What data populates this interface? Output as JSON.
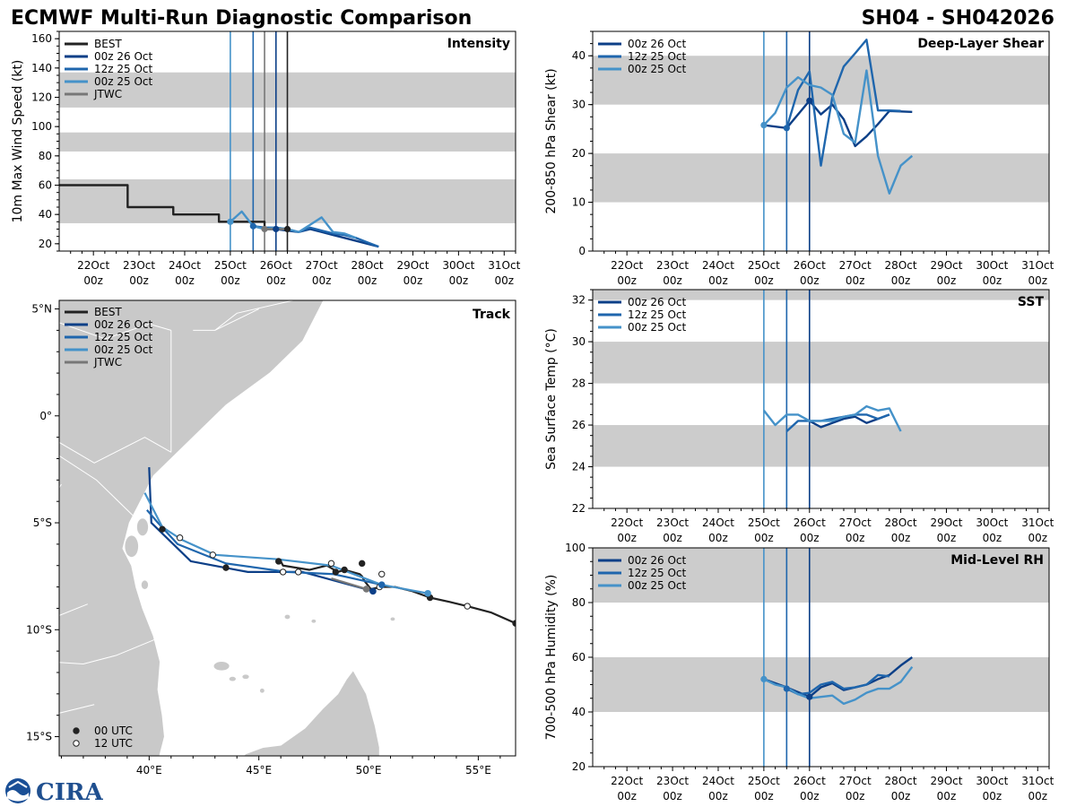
{
  "header": {
    "title": "ECMWF Multi-Run Diagnostic Comparison",
    "storm_id": "SH04 - SH042026"
  },
  "logo": {
    "text": "CIRA"
  },
  "colors": {
    "BEST": "#222222",
    "00z 26 Oct": "#0c3f87",
    "12z 25 Oct": "#1f66ad",
    "00z 25 Oct": "#4592c9",
    "JTWC": "#777777",
    "band": "#cccccc",
    "land": "#c9c9c9"
  },
  "time_axis": {
    "labels": [
      "22Oct\n00z",
      "23Oct\n00z",
      "24Oct\n00z",
      "25Oct\n00z",
      "26Oct\n00z",
      "27Oct\n00z",
      "28Oct\n00z",
      "29Oct\n00z",
      "30Oct\n00z",
      "31Oct\n00z"
    ],
    "range_days": [
      21.25,
      31.25
    ]
  },
  "chart_data": [
    {
      "id": "intensity",
      "type": "line",
      "title": "Intensity",
      "ylabel": "10m Max Wind Speed (kt)",
      "ylim": [
        15,
        165
      ],
      "yticks": [
        20,
        40,
        60,
        80,
        100,
        120,
        140,
        160
      ],
      "bands": [
        [
          34,
          64
        ],
        [
          83,
          96
        ],
        [
          113,
          137
        ]
      ],
      "init_lines": [
        {
          "x": 25.0,
          "series": "00z 25 Oct"
        },
        {
          "x": 25.5,
          "series": "12z 25 Oct"
        },
        {
          "x": 25.75,
          "series": "JTWC"
        },
        {
          "x": 26.0,
          "series": "00z 26 Oct"
        },
        {
          "x": 26.25,
          "series": "BEST"
        }
      ],
      "legend": [
        "BEST",
        "00z 26 Oct",
        "12z 25 Oct",
        "00z 25 Oct",
        "JTWC"
      ],
      "series": [
        {
          "name": "BEST",
          "x": [
            21.25,
            21.5,
            22.0,
            22.5,
            22.75,
            23.0,
            23.5,
            23.75,
            24.0,
            24.5,
            24.75,
            25.0,
            25.5,
            25.75,
            26.0,
            26.25
          ],
          "y": [
            60,
            60,
            60,
            60,
            45,
            45,
            45,
            40,
            40,
            40,
            35,
            35,
            35,
            30,
            30,
            30
          ],
          "step": true
        },
        {
          "name": "00z 26 Oct",
          "x": [
            26.0,
            26.25,
            26.5,
            26.75,
            27.0,
            27.25,
            27.5,
            27.75,
            28.0,
            28.25
          ],
          "y": [
            30,
            29,
            28,
            30,
            28,
            26,
            24,
            22,
            20,
            18
          ]
        },
        {
          "name": "12z 25 Oct",
          "x": [
            25.5,
            25.75,
            26.0,
            26.25,
            26.5,
            26.75,
            27.0,
            27.25,
            27.5,
            27.75,
            28.0,
            28.25
          ],
          "y": [
            32,
            31,
            31,
            30,
            28,
            31,
            29,
            27,
            26,
            24,
            21,
            18
          ]
        },
        {
          "name": "00z 25 Oct",
          "x": [
            25.0,
            25.25,
            25.5,
            25.75,
            26.0,
            26.25,
            26.5,
            26.75,
            27.0,
            27.25,
            27.5,
            27.75
          ],
          "y": [
            35,
            42,
            32,
            30,
            31,
            30,
            28,
            33,
            38,
            28,
            27,
            24
          ]
        },
        {
          "name": "JTWC",
          "x": [
            25.75,
            26.0,
            26.25
          ],
          "y": [
            30,
            30,
            30
          ]
        }
      ],
      "markers": [
        {
          "series": "00z 25 Oct",
          "x": 25.0,
          "y": 35
        },
        {
          "series": "12z 25 Oct",
          "x": 25.5,
          "y": 32
        },
        {
          "series": "JTWC",
          "x": 25.75,
          "y": 30
        },
        {
          "series": "00z 26 Oct",
          "x": 26.0,
          "y": 30
        },
        {
          "series": "BEST",
          "x": 26.25,
          "y": 30
        }
      ]
    },
    {
      "id": "shear",
      "type": "line",
      "title": "Deep-Layer Shear",
      "ylabel": "200-850 hPa Shear (kt)",
      "ylim": [
        0,
        45
      ],
      "yticks": [
        0,
        10,
        20,
        30,
        40
      ],
      "bands": [
        [
          10,
          20
        ],
        [
          30,
          40
        ]
      ],
      "init_lines": [
        {
          "x": 25.0,
          "series": "00z 25 Oct"
        },
        {
          "x": 25.5,
          "series": "12z 25 Oct"
        },
        {
          "x": 26.0,
          "series": "00z 26 Oct"
        }
      ],
      "legend": [
        "00z 26 Oct",
        "12z 25 Oct",
        "00z 25 Oct"
      ],
      "series": [
        {
          "name": "00z 26 Oct",
          "x": [
            25.0,
            25.5,
            26.0,
            26.25,
            26.5,
            26.75,
            27.0,
            27.25,
            27.5,
            27.75,
            28.0,
            28.25
          ],
          "y": [
            25.8,
            25.2,
            30.8,
            28.0,
            30.0,
            27.0,
            21.5,
            23.5,
            26.0,
            28.7,
            28.6,
            28.5
          ]
        },
        {
          "name": "12z 25 Oct",
          "x": [
            25.5,
            25.75,
            26.0,
            26.25,
            26.5,
            26.75,
            27.0,
            27.25,
            27.5,
            27.75,
            28.0
          ],
          "y": [
            25.2,
            33.0,
            36.8,
            17.5,
            31.5,
            37.8,
            40.5,
            43.3,
            28.8,
            28.8,
            28.7
          ]
        },
        {
          "name": "00z 25 Oct",
          "x": [
            25.0,
            25.25,
            25.5,
            25.75,
            26.0,
            26.25,
            26.5,
            26.75,
            27.0,
            27.25,
            27.5,
            27.75,
            28.0,
            28.25
          ],
          "y": [
            25.8,
            28.3,
            33.5,
            35.6,
            34.0,
            33.5,
            32.0,
            24.0,
            22.2,
            37.0,
            19.5,
            11.8,
            17.5,
            19.5
          ]
        }
      ],
      "markers": [
        {
          "series": "00z 25 Oct",
          "x": 25.0,
          "y": 25.8
        },
        {
          "series": "12z 25 Oct",
          "x": 25.5,
          "y": 25.2
        },
        {
          "series": "00z 26 Oct",
          "x": 26.0,
          "y": 30.8
        }
      ]
    },
    {
      "id": "sst",
      "type": "line",
      "title": "SST",
      "ylabel": "Sea Surface Temp (°C)",
      "ylim": [
        22,
        32.5
      ],
      "yticks": [
        22,
        24,
        26,
        28,
        30,
        32
      ],
      "bands": [
        [
          24,
          26
        ],
        [
          28,
          30
        ],
        [
          32,
          32.5
        ]
      ],
      "init_lines": [
        {
          "x": 25.0,
          "series": "00z 25 Oct"
        },
        {
          "x": 25.5,
          "series": "12z 25 Oct"
        },
        {
          "x": 26.0,
          "series": "00z 26 Oct"
        }
      ],
      "legend": [
        "00z 26 Oct",
        "12z 25 Oct",
        "00z 25 Oct"
      ],
      "series": [
        {
          "name": "00z 26 Oct",
          "x": [
            26.0,
            26.25,
            26.5,
            26.75,
            27.0,
            27.25,
            27.5,
            27.75
          ],
          "y": [
            26.2,
            25.9,
            26.1,
            26.3,
            26.4,
            26.1,
            26.3,
            26.5
          ]
        },
        {
          "name": "12z 25 Oct",
          "x": [
            25.5,
            25.75,
            26.0,
            26.25,
            26.5,
            26.75,
            27.0,
            27.25,
            27.5,
            27.75
          ],
          "y": [
            25.7,
            26.2,
            26.2,
            26.2,
            26.3,
            26.4,
            26.5,
            26.5,
            26.3,
            26.5
          ]
        },
        {
          "name": "00z 25 Oct",
          "x": [
            25.0,
            25.25,
            25.5,
            25.75,
            26.0,
            26.25,
            26.5,
            26.75,
            27.0,
            27.25,
            27.5,
            27.75,
            28.0
          ],
          "y": [
            26.7,
            26.0,
            26.5,
            26.5,
            26.2,
            26.2,
            26.2,
            26.4,
            26.5,
            26.9,
            26.7,
            26.8,
            25.7
          ]
        }
      ],
      "markers": []
    },
    {
      "id": "rh",
      "type": "line",
      "title": "Mid-Level RH",
      "ylabel": "700-500 hPa Humidity (%)",
      "ylim": [
        20,
        100
      ],
      "yticks": [
        20,
        40,
        60,
        80,
        100
      ],
      "bands": [
        [
          40,
          60
        ],
        [
          80,
          100
        ]
      ],
      "init_lines": [
        {
          "x": 25.0,
          "series": "00z 25 Oct"
        },
        {
          "x": 25.5,
          "series": "12z 25 Oct"
        },
        {
          "x": 26.0,
          "series": "00z 26 Oct"
        }
      ],
      "legend": [
        "00z 26 Oct",
        "12z 25 Oct",
        "00z 25 Oct"
      ],
      "series": [
        {
          "name": "00z 26 Oct",
          "x": [
            25.0,
            25.5,
            26.0,
            26.25,
            26.5,
            26.75,
            27.0,
            27.25,
            27.5,
            27.75,
            28.0,
            28.25
          ],
          "y": [
            52,
            49,
            45.5,
            49,
            50.5,
            48,
            49,
            50,
            52,
            53.5,
            57,
            60
          ]
        },
        {
          "name": "12z 25 Oct",
          "x": [
            25.5,
            25.75,
            26.0,
            26.25,
            26.5,
            26.75,
            27.0,
            27.25,
            27.5,
            27.75
          ],
          "y": [
            48.5,
            46.5,
            47,
            50,
            51,
            48.5,
            49,
            50,
            53.5,
            53
          ]
        },
        {
          "name": "00z 25 Oct",
          "x": [
            25.0,
            25.25,
            25.5,
            25.75,
            26.0,
            26.25,
            26.5,
            26.75,
            27.0,
            27.25,
            27.5,
            27.75,
            28.0,
            28.25
          ],
          "y": [
            52,
            50,
            49,
            46.5,
            45,
            45.5,
            46,
            43,
            44.5,
            47,
            48.5,
            48.5,
            51,
            56.5
          ]
        }
      ],
      "markers": [
        {
          "series": "00z 25 Oct",
          "x": 25.0,
          "y": 52
        },
        {
          "series": "12z 25 Oct",
          "x": 25.5,
          "y": 48.5
        },
        {
          "series": "00z 26 Oct",
          "x": 26.0,
          "y": 45.5
        }
      ]
    },
    {
      "id": "track",
      "type": "scatter",
      "title": "Track",
      "xlim": [
        35.9,
        56.7
      ],
      "ylim": [
        -15.9,
        5.4
      ],
      "xticks": [
        40,
        45,
        50,
        55
      ],
      "xtick_labels": [
        "40°E",
        "45°E",
        "50°E",
        "55°E"
      ],
      "yticks": [
        5,
        0,
        -5,
        -10,
        -15
      ],
      "ytick_labels": [
        "5°N",
        "0°",
        "5°S",
        "10°S",
        "15°S"
      ],
      "legend": [
        "BEST",
        "00z 26 Oct",
        "12z 25 Oct",
        "00z 25 Oct",
        "JTWC"
      ],
      "utc_legend": [
        "00 UTC",
        "12 UTC"
      ],
      "series": [
        {
          "name": "BEST",
          "lon": [
            56.7,
            55.6,
            54.5,
            53.7,
            52.8,
            52.0,
            51.2,
            50.6,
            50.1,
            49.8,
            49.7,
            49.6,
            48.9,
            48.6,
            48.1,
            47.3,
            46.1,
            46.0
          ],
          "lat": [
            -9.7,
            -9.2,
            -8.9,
            -8.7,
            -8.5,
            -8.2,
            -8.0,
            -8.0,
            -8.1,
            -7.7,
            -7.5,
            -7.4,
            -7.2,
            -7.3,
            -7.0,
            -7.2,
            -7.0,
            -6.8
          ]
        },
        {
          "name": "00z 26 Oct",
          "lon": [
            50.2,
            49.5,
            47.0,
            44.5,
            41.9,
            40.1,
            40.0
          ],
          "lat": [
            -8.2,
            -8.0,
            -7.3,
            -7.3,
            -6.8,
            -5.0,
            -2.4
          ]
        },
        {
          "name": "12z 25 Oct",
          "lon": [
            50.6,
            48.4,
            46.3,
            43.5,
            41.3,
            40.4,
            39.9
          ],
          "lat": [
            -7.9,
            -7.4,
            -7.3,
            -6.9,
            -6.0,
            -5.0,
            -4.4
          ]
        },
        {
          "name": "00z 25 Oct",
          "lon": [
            52.7,
            50.6,
            48.3,
            45.8,
            43.0,
            41.5,
            40.6,
            39.8
          ],
          "lat": [
            -8.3,
            -7.9,
            -7.0,
            -6.7,
            -6.5,
            -5.8,
            -5.2,
            -3.6
          ]
        },
        {
          "name": "JTWC",
          "lon": [
            49.9,
            48.3
          ],
          "lat": [
            -8.1,
            -7.6
          ]
        }
      ],
      "points": [
        {
          "lon": 56.7,
          "lat": -9.7,
          "utc": "00"
        },
        {
          "lon": 54.5,
          "lat": -8.9,
          "utc": "12"
        },
        {
          "lon": 52.8,
          "lat": -8.5,
          "utc": "00"
        },
        {
          "lon": 50.5,
          "lat": -8.0,
          "utc": "12"
        },
        {
          "lon": 50.6,
          "lat": -7.4,
          "utc": "12"
        },
        {
          "lon": 49.7,
          "lat": -6.9,
          "utc": "00"
        },
        {
          "lon": 48.9,
          "lat": -7.2,
          "utc": "00"
        },
        {
          "lon": 48.5,
          "lat": -7.3,
          "utc": "00"
        },
        {
          "lon": 48.3,
          "lat": -6.9,
          "utc": "12"
        },
        {
          "lon": 46.8,
          "lat": -7.3,
          "utc": "12"
        },
        {
          "lon": 46.1,
          "lat": -7.3,
          "utc": "12"
        },
        {
          "lon": 45.9,
          "lat": -6.8,
          "utc": "00"
        },
        {
          "lon": 43.5,
          "lat": -7.1,
          "utc": "00"
        },
        {
          "lon": 42.9,
          "lat": -6.5,
          "utc": "12"
        },
        {
          "lon": 41.4,
          "lat": -5.7,
          "utc": "12"
        },
        {
          "lon": 40.6,
          "lat": -5.3,
          "utc": "00"
        }
      ],
      "init_markers": [
        {
          "series": "00z 26 Oct",
          "lon": 50.2,
          "lat": -8.2
        },
        {
          "series": "12z 25 Oct",
          "lon": 50.6,
          "lat": -7.9
        },
        {
          "series": "00z 25 Oct",
          "lon": 52.7,
          "lat": -8.3
        },
        {
          "series": "JTWC",
          "lon": 49.9,
          "lat": -8.1
        }
      ]
    }
  ]
}
